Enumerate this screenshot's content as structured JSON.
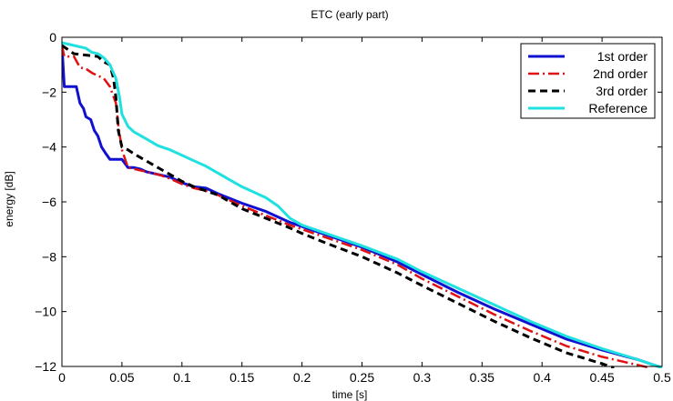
{
  "chart_data": {
    "type": "line",
    "title": "ETC (early part)",
    "xlabel": "time [s]",
    "ylabel": "energy [dB]",
    "xlim": [
      0,
      0.5
    ],
    "ylim": [
      -12,
      0
    ],
    "xticks": [
      0,
      0.05,
      0.1,
      0.15,
      0.2,
      0.25,
      0.3,
      0.35,
      0.4,
      0.45,
      0.5
    ],
    "xtick_labels": [
      "0",
      "0.05",
      "0.1",
      "0.15",
      "0.2",
      "0.25",
      "0.3",
      "0.35",
      "0.4",
      "0.45",
      "0.5"
    ],
    "yticks": [
      0,
      -2,
      -4,
      -6,
      -8,
      -10,
      -12
    ],
    "ytick_labels": [
      "0",
      "−2",
      "−4",
      "−6",
      "−8",
      "−10",
      "−12"
    ],
    "grid": false,
    "legend_position": "top-right",
    "series": [
      {
        "name": "1st order",
        "color": "#1010d0",
        "dash": "solid",
        "width": 3,
        "points": [
          [
            0,
            -0.3
          ],
          [
            0.002,
            -1.8
          ],
          [
            0.012,
            -1.8
          ],
          [
            0.015,
            -2.4
          ],
          [
            0.018,
            -2.6
          ],
          [
            0.02,
            -2.9
          ],
          [
            0.024,
            -3.0
          ],
          [
            0.027,
            -3.4
          ],
          [
            0.03,
            -3.6
          ],
          [
            0.033,
            -4.0
          ],
          [
            0.036,
            -4.2
          ],
          [
            0.04,
            -4.45
          ],
          [
            0.05,
            -4.45
          ],
          [
            0.055,
            -4.75
          ],
          [
            0.06,
            -4.75
          ],
          [
            0.065,
            -4.8
          ],
          [
            0.07,
            -4.9
          ],
          [
            0.08,
            -5.0
          ],
          [
            0.09,
            -5.1
          ],
          [
            0.1,
            -5.3
          ],
          [
            0.11,
            -5.45
          ],
          [
            0.12,
            -5.5
          ],
          [
            0.13,
            -5.7
          ],
          [
            0.15,
            -6.05
          ],
          [
            0.17,
            -6.35
          ],
          [
            0.19,
            -6.75
          ],
          [
            0.22,
            -7.2
          ],
          [
            0.25,
            -7.65
          ],
          [
            0.28,
            -8.2
          ],
          [
            0.3,
            -8.65
          ],
          [
            0.33,
            -9.3
          ],
          [
            0.36,
            -9.9
          ],
          [
            0.39,
            -10.45
          ],
          [
            0.42,
            -11.0
          ],
          [
            0.45,
            -11.4
          ],
          [
            0.48,
            -11.75
          ],
          [
            0.5,
            -12.05
          ]
        ]
      },
      {
        "name": "2nd order",
        "color": "#e01010",
        "dash": "12,4,2,4",
        "width": 2.5,
        "points": [
          [
            0,
            -0.3
          ],
          [
            0.002,
            -0.7
          ],
          [
            0.01,
            -0.7
          ],
          [
            0.015,
            -1.1
          ],
          [
            0.02,
            -1.15
          ],
          [
            0.025,
            -1.3
          ],
          [
            0.03,
            -1.4
          ],
          [
            0.035,
            -1.5
          ],
          [
            0.04,
            -1.8
          ],
          [
            0.045,
            -2.4
          ],
          [
            0.047,
            -3.2
          ],
          [
            0.05,
            -4.1
          ],
          [
            0.055,
            -4.75
          ],
          [
            0.06,
            -4.8
          ],
          [
            0.07,
            -4.9
          ],
          [
            0.08,
            -5.0
          ],
          [
            0.09,
            -5.15
          ],
          [
            0.1,
            -5.35
          ],
          [
            0.11,
            -5.5
          ],
          [
            0.12,
            -5.6
          ],
          [
            0.13,
            -5.75
          ],
          [
            0.15,
            -6.15
          ],
          [
            0.17,
            -6.5
          ],
          [
            0.19,
            -6.85
          ],
          [
            0.22,
            -7.3
          ],
          [
            0.25,
            -7.75
          ],
          [
            0.28,
            -8.3
          ],
          [
            0.3,
            -8.8
          ],
          [
            0.33,
            -9.45
          ],
          [
            0.36,
            -10.1
          ],
          [
            0.39,
            -10.7
          ],
          [
            0.42,
            -11.25
          ],
          [
            0.45,
            -11.65
          ],
          [
            0.48,
            -11.95
          ],
          [
            0.49,
            -12.05
          ]
        ]
      },
      {
        "name": "3rd order",
        "color": "#000000",
        "dash": "8,5",
        "width": 3,
        "points": [
          [
            0,
            -0.3
          ],
          [
            0.01,
            -0.6
          ],
          [
            0.02,
            -0.65
          ],
          [
            0.03,
            -0.7
          ],
          [
            0.035,
            -0.9
          ],
          [
            0.04,
            -1.0
          ],
          [
            0.043,
            -1.5
          ],
          [
            0.045,
            -2.2
          ],
          [
            0.047,
            -3.4
          ],
          [
            0.05,
            -4.0
          ],
          [
            0.055,
            -4.1
          ],
          [
            0.06,
            -4.25
          ],
          [
            0.07,
            -4.5
          ],
          [
            0.08,
            -4.75
          ],
          [
            0.09,
            -5.0
          ],
          [
            0.1,
            -5.25
          ],
          [
            0.11,
            -5.45
          ],
          [
            0.12,
            -5.6
          ],
          [
            0.13,
            -5.75
          ],
          [
            0.14,
            -6.0
          ],
          [
            0.15,
            -6.25
          ],
          [
            0.17,
            -6.6
          ],
          [
            0.19,
            -6.95
          ],
          [
            0.2,
            -7.15
          ],
          [
            0.22,
            -7.5
          ],
          [
            0.25,
            -8.0
          ],
          [
            0.28,
            -8.6
          ],
          [
            0.3,
            -9.05
          ],
          [
            0.33,
            -9.7
          ],
          [
            0.36,
            -10.35
          ],
          [
            0.39,
            -10.95
          ],
          [
            0.42,
            -11.5
          ],
          [
            0.45,
            -11.9
          ],
          [
            0.46,
            -12.05
          ]
        ]
      },
      {
        "name": "Reference",
        "color": "#20e0e0",
        "dash": "solid",
        "width": 3,
        "points": [
          [
            0,
            -0.2
          ],
          [
            0.01,
            -0.3
          ],
          [
            0.02,
            -0.4
          ],
          [
            0.025,
            -0.55
          ],
          [
            0.03,
            -0.6
          ],
          [
            0.035,
            -0.75
          ],
          [
            0.04,
            -1.0
          ],
          [
            0.045,
            -1.5
          ],
          [
            0.048,
            -2.2
          ],
          [
            0.05,
            -2.8
          ],
          [
            0.055,
            -3.25
          ],
          [
            0.06,
            -3.45
          ],
          [
            0.07,
            -3.7
          ],
          [
            0.08,
            -3.95
          ],
          [
            0.09,
            -4.1
          ],
          [
            0.1,
            -4.3
          ],
          [
            0.11,
            -4.5
          ],
          [
            0.12,
            -4.7
          ],
          [
            0.13,
            -4.95
          ],
          [
            0.14,
            -5.2
          ],
          [
            0.15,
            -5.45
          ],
          [
            0.16,
            -5.65
          ],
          [
            0.17,
            -5.85
          ],
          [
            0.18,
            -6.15
          ],
          [
            0.19,
            -6.6
          ],
          [
            0.2,
            -6.85
          ],
          [
            0.22,
            -7.15
          ],
          [
            0.25,
            -7.6
          ],
          [
            0.28,
            -8.1
          ],
          [
            0.3,
            -8.55
          ],
          [
            0.33,
            -9.15
          ],
          [
            0.36,
            -9.75
          ],
          [
            0.39,
            -10.35
          ],
          [
            0.42,
            -10.9
          ],
          [
            0.45,
            -11.35
          ],
          [
            0.48,
            -11.75
          ],
          [
            0.5,
            -12.05
          ]
        ]
      }
    ]
  }
}
